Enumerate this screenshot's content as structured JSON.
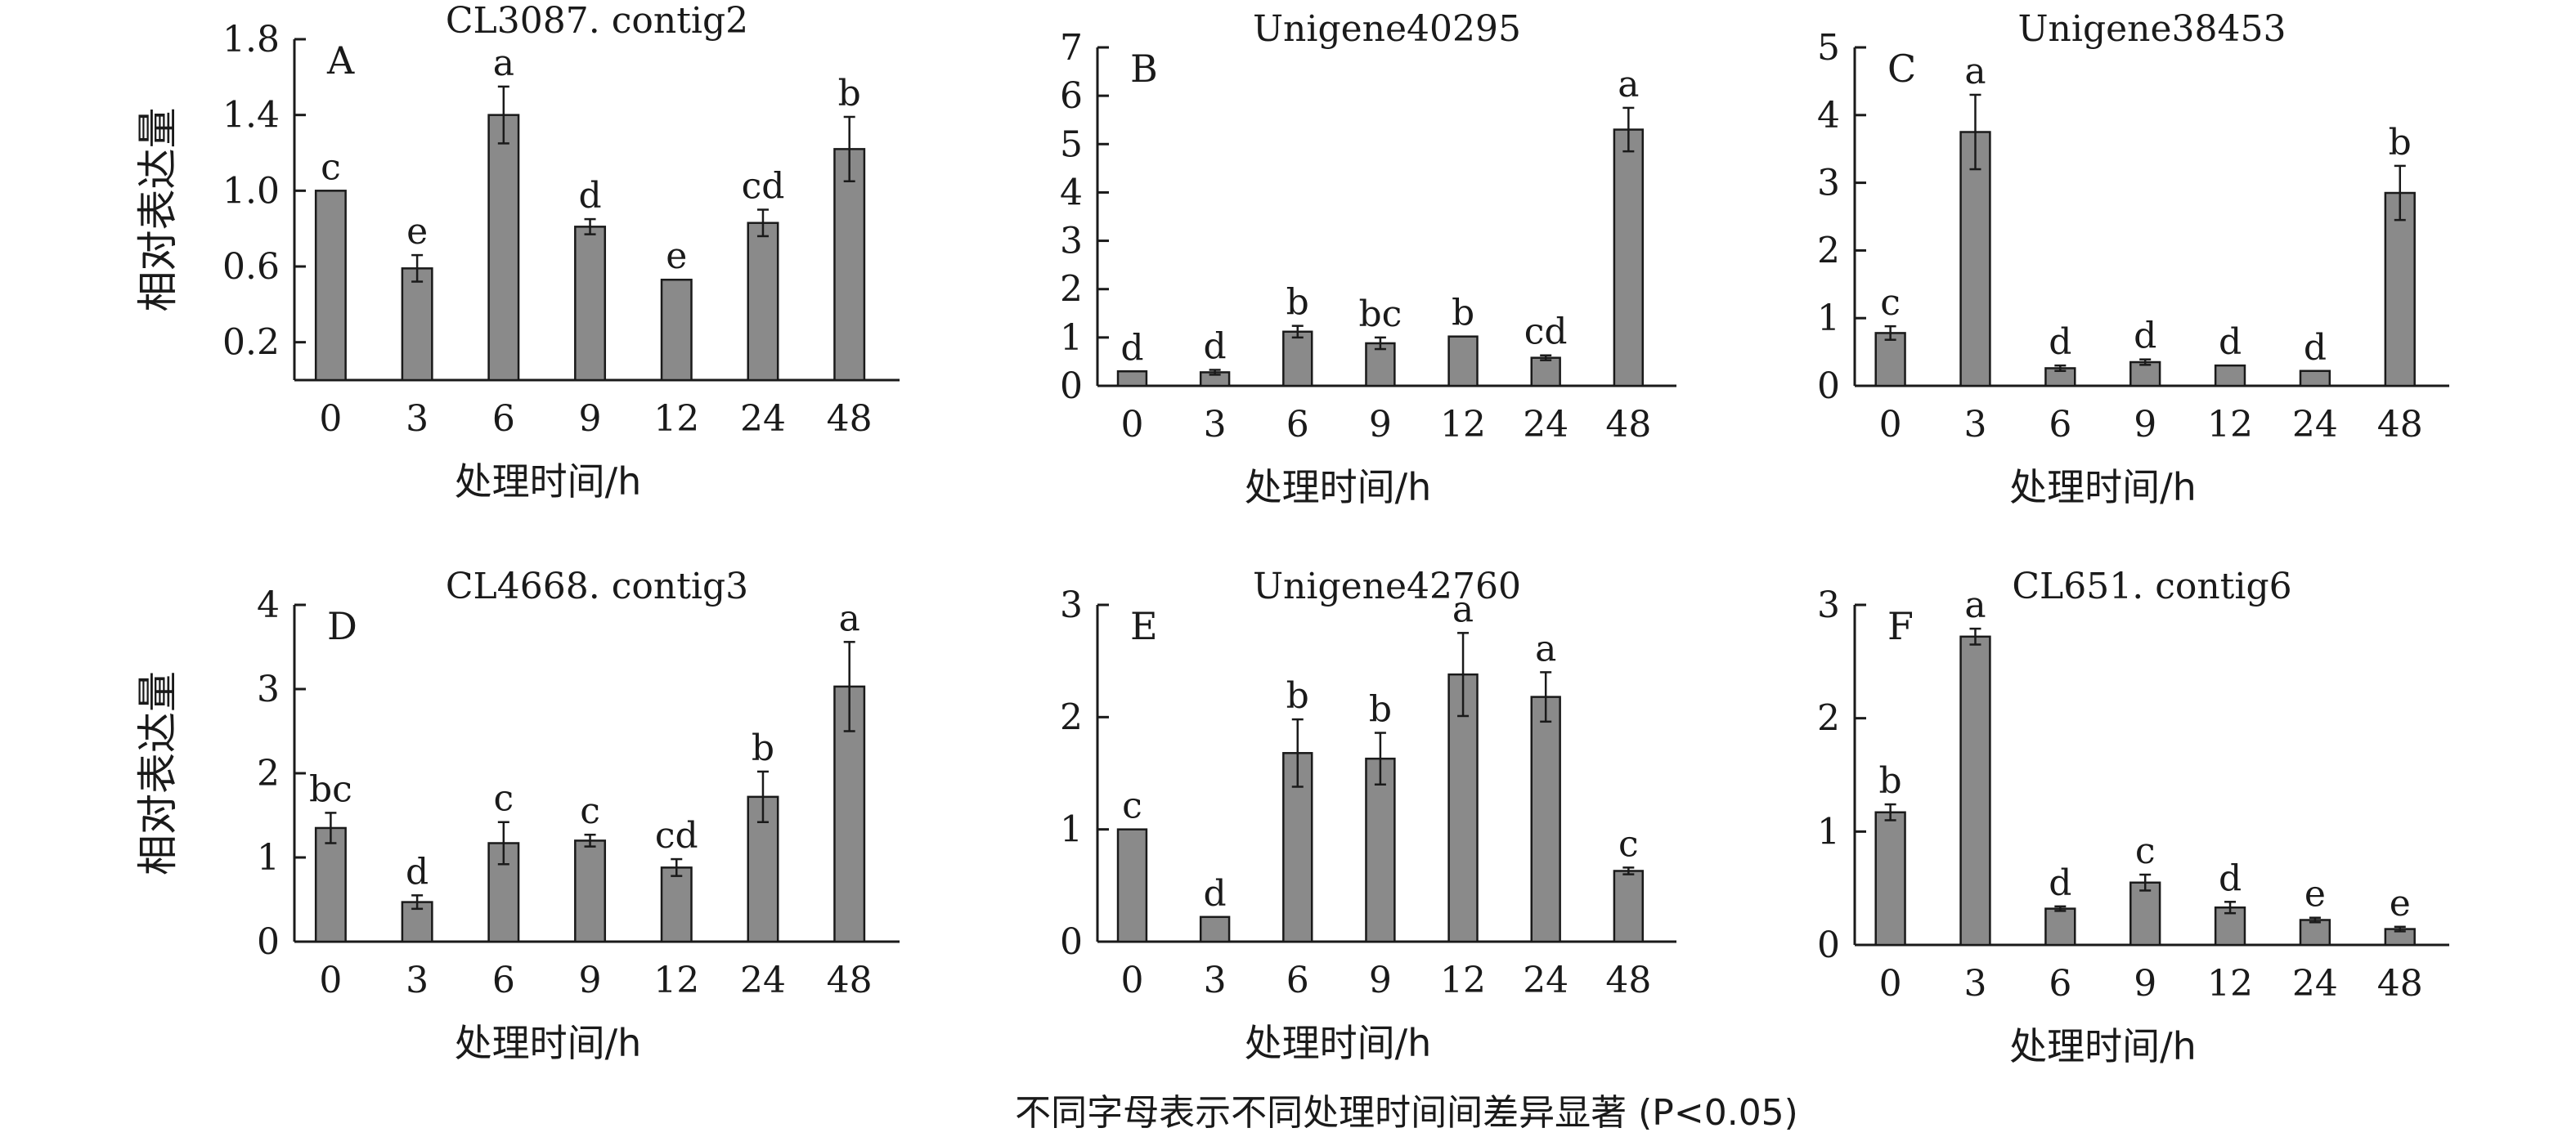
{
  "footnote": "不同字母表示不同处理时间间差异显著 (P<0.05)",
  "colors": {
    "bar": "#8a8a8a",
    "stroke": "#1a1a1a"
  },
  "chart_data": [
    {
      "type": "bar",
      "panel": "A",
      "title": "CL3087. contig2",
      "categories": [
        "0",
        "3",
        "6",
        "9",
        "12",
        "24",
        "48"
      ],
      "values": [
        1.0,
        0.59,
        1.4,
        0.81,
        0.53,
        0.83,
        1.22
      ],
      "errors": [
        0.0,
        0.07,
        0.15,
        0.04,
        0.0,
        0.07,
        0.17
      ],
      "letters": [
        "c",
        "e",
        "a",
        "d",
        "e",
        "cd",
        "b"
      ],
      "ylim": [
        0,
        1.8
      ],
      "yticks": [
        0.2,
        0.6,
        1.0,
        1.4,
        1.8
      ],
      "yticklabels": [
        "0.2",
        "0.6",
        "1.0",
        "1.4",
        "1.8"
      ],
      "xlabel": "处理时间/h",
      "ylabel": "相对表达量"
    },
    {
      "type": "bar",
      "panel": "B",
      "title": "Unigene40295",
      "categories": [
        "0",
        "3",
        "6",
        "9",
        "12",
        "24",
        "48"
      ],
      "values": [
        0.3,
        0.28,
        1.12,
        0.88,
        1.02,
        0.58,
        5.3
      ],
      "errors": [
        0.0,
        0.05,
        0.12,
        0.12,
        0.0,
        0.05,
        0.45
      ],
      "letters": [
        "d",
        "d",
        "b",
        "bc",
        "b",
        "cd",
        "a"
      ],
      "ylim": [
        0,
        7
      ],
      "yticks": [
        0,
        1,
        2,
        3,
        4,
        5,
        6,
        7
      ],
      "yticklabels": [
        "0",
        "1",
        "2",
        "3",
        "4",
        "5",
        "6",
        "7"
      ],
      "xlabel": "处理时间/h",
      "ylabel": ""
    },
    {
      "type": "bar",
      "panel": "C",
      "title": "Unigene38453",
      "categories": [
        "0",
        "3",
        "6",
        "9",
        "12",
        "24",
        "48"
      ],
      "values": [
        0.78,
        3.75,
        0.26,
        0.35,
        0.3,
        0.22,
        2.85
      ],
      "errors": [
        0.1,
        0.55,
        0.04,
        0.04,
        0.0,
        0.0,
        0.4
      ],
      "letters": [
        "c",
        "a",
        "d",
        "d",
        "d",
        "d",
        "b"
      ],
      "ylim": [
        0,
        5
      ],
      "yticks": [
        0,
        1,
        2,
        3,
        4,
        5
      ],
      "yticklabels": [
        "0",
        "1",
        "2",
        "3",
        "4",
        "5"
      ],
      "xlabel": "处理时间/h",
      "ylabel": ""
    },
    {
      "type": "bar",
      "panel": "D",
      "title": "CL4668. contig3",
      "categories": [
        "0",
        "3",
        "6",
        "9",
        "12",
        "24",
        "48"
      ],
      "values": [
        1.35,
        0.47,
        1.17,
        1.2,
        0.88,
        1.72,
        3.03
      ],
      "errors": [
        0.18,
        0.08,
        0.25,
        0.07,
        0.1,
        0.3,
        0.53
      ],
      "letters": [
        "bc",
        "d",
        "c",
        "c",
        "cd",
        "b",
        "a"
      ],
      "ylim": [
        0,
        4
      ],
      "yticks": [
        0,
        1,
        2,
        3,
        4
      ],
      "yticklabels": [
        "0",
        "1",
        "2",
        "3",
        "4"
      ],
      "xlabel": "处理时间/h",
      "ylabel": "相对表达量"
    },
    {
      "type": "bar",
      "panel": "E",
      "title": "Unigene42760",
      "categories": [
        "0",
        "3",
        "6",
        "9",
        "12",
        "24",
        "48"
      ],
      "values": [
        1.0,
        0.22,
        1.68,
        1.63,
        2.38,
        2.18,
        0.63
      ],
      "errors": [
        0.0,
        0.0,
        0.3,
        0.23,
        0.37,
        0.22,
        0.03
      ],
      "letters": [
        "c",
        "d",
        "b",
        "b",
        "a",
        "a",
        "c"
      ],
      "ylim": [
        0,
        3
      ],
      "yticks": [
        0,
        1,
        2,
        3
      ],
      "yticklabels": [
        "0",
        "1",
        "2",
        "3"
      ],
      "xlabel": "处理时间/h",
      "ylabel": ""
    },
    {
      "type": "bar",
      "panel": "F",
      "title": "CL651. contig6",
      "categories": [
        "0",
        "3",
        "6",
        "9",
        "12",
        "24",
        "48"
      ],
      "values": [
        1.17,
        2.72,
        0.32,
        0.55,
        0.33,
        0.22,
        0.14
      ],
      "errors": [
        0.07,
        0.07,
        0.02,
        0.07,
        0.05,
        0.02,
        0.02
      ],
      "letters": [
        "b",
        "a",
        "d",
        "c",
        "d",
        "e",
        "e"
      ],
      "ylim": [
        0,
        3
      ],
      "yticks": [
        0,
        1,
        2,
        3
      ],
      "yticklabels": [
        "0",
        "1",
        "2",
        "3"
      ],
      "xlabel": "处理时间/h",
      "ylabel": ""
    }
  ]
}
